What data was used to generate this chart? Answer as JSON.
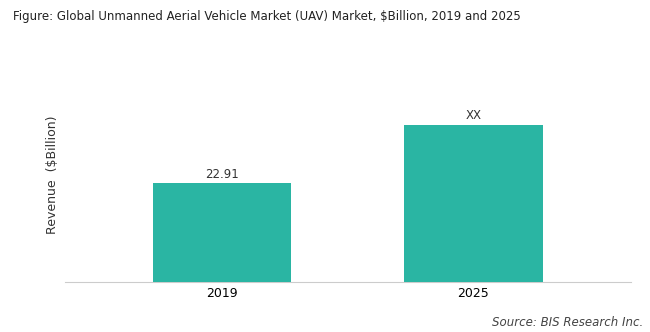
{
  "title": "Figure: Global Unmanned Aerial Vehicle Market (UAV) Market, $Billion, 2019 and 2025",
  "categories": [
    "2019",
    "2025"
  ],
  "values": [
    22.91,
    36.5
  ],
  "bar_labels": [
    "22.91",
    "XX"
  ],
  "bar_color": "#2ab5a3",
  "ylabel": "Revenue  ($Billion)",
  "ylim": [
    0,
    50
  ],
  "bar_width": 0.22,
  "source_text": "Source: BIS Research Inc.",
  "background_color": "#ffffff",
  "plot_bg_color": "#ffffff",
  "title_fontsize": 8.5,
  "label_fontsize": 8.5,
  "tick_fontsize": 9,
  "ylabel_fontsize": 9,
  "source_fontsize": 8.5
}
